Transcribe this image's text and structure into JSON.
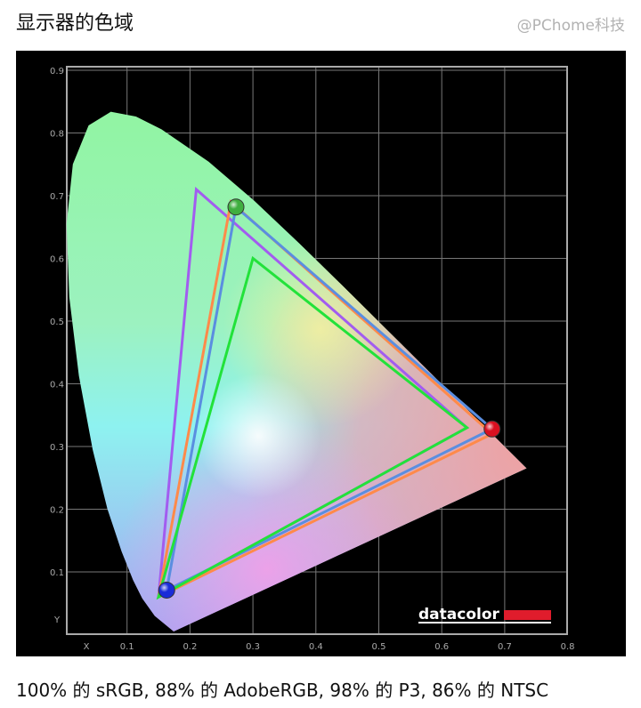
{
  "page": {
    "title": "显示器的色域",
    "caption": "100% 的 sRGB, 88% 的 AdobeRGB, 98% 的 P3, 86% 的 NTSC",
    "watermark": "@PChome科技"
  },
  "chart_data": {
    "type": "line",
    "subtype": "CIE 1931 xy chromaticity diagram",
    "title": "",
    "xlabel": "X",
    "ylabel": "Y",
    "xlim": [
      0,
      0.8
    ],
    "ylim": [
      0,
      0.9
    ],
    "grid": true,
    "background": "#000000",
    "x_ticks": [
      "0.1",
      "0.2",
      "0.3",
      "0.4",
      "0.5",
      "0.6",
      "0.7",
      "0.8"
    ],
    "y_ticks": [
      "0.1",
      "0.2",
      "0.3",
      "0.4",
      "0.5",
      "0.6",
      "0.7",
      "0.8",
      "0.9"
    ],
    "logo": "datacolor",
    "spectral_locus": [
      [
        0.1741,
        0.005
      ],
      [
        0.144,
        0.0297
      ],
      [
        0.1241,
        0.0578
      ],
      [
        0.1096,
        0.0868
      ],
      [
        0.0913,
        0.1327
      ],
      [
        0.0687,
        0.2007
      ],
      [
        0.0454,
        0.295
      ],
      [
        0.0235,
        0.4127
      ],
      [
        0.0082,
        0.5384
      ],
      [
        0.0039,
        0.6548
      ],
      [
        0.0139,
        0.7502
      ],
      [
        0.0389,
        0.812
      ],
      [
        0.0743,
        0.8338
      ],
      [
        0.1142,
        0.8262
      ],
      [
        0.1547,
        0.8059
      ],
      [
        0.2296,
        0.7543
      ],
      [
        0.3016,
        0.6923
      ],
      [
        0.3731,
        0.6245
      ],
      [
        0.4441,
        0.5547
      ],
      [
        0.5125,
        0.4866
      ],
      [
        0.5752,
        0.4242
      ],
      [
        0.627,
        0.3725
      ],
      [
        0.6915,
        0.3083
      ],
      [
        0.7347,
        0.2653
      ]
    ],
    "series": [
      {
        "color": "#a25cf0",
        "points": [
          [
            0.64,
            0.33
          ],
          [
            0.21,
            0.71
          ],
          [
            0.15,
            0.06
          ]
        ]
      },
      {
        "color": "#ff8a4a",
        "points": [
          [
            0.68,
            0.32
          ],
          [
            0.265,
            0.69
          ],
          [
            0.15,
            0.06
          ]
        ]
      },
      {
        "color": "#5a8ee0",
        "points": [
          [
            0.68,
            0.328
          ],
          [
            0.273,
            0.682
          ],
          [
            0.163,
            0.071
          ]
        ],
        "markers": true
      },
      {
        "color": "#22e23a",
        "points": [
          [
            0.64,
            0.33
          ],
          [
            0.3,
            0.6
          ],
          [
            0.15,
            0.06
          ]
        ]
      }
    ],
    "marker_colors": [
      "#d81020",
      "#3fae3f",
      "#1a2cd8"
    ]
  }
}
